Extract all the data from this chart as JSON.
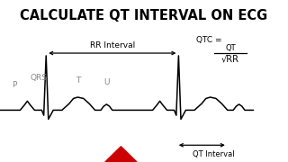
{
  "title": "CALCULATE QT INTERVAL ON ECG",
  "title_bg": "#FFFF00",
  "title_color": "#000000",
  "ecg_color": "#000000",
  "background_color": "#FFFFFF",
  "label_P": "P",
  "label_QRS": "QRS",
  "label_T": "T",
  "label_U": "U",
  "label_RR": "RR Interval",
  "label_QT": "QT Interval",
  "formula_num": "QT",
  "formula_den": "√RR",
  "formula_label": "QTC =",
  "arrow_color": "#000000",
  "red_triangle_color": "#CC0000",
  "figw": 3.2,
  "figh": 1.8,
  "dpi": 100
}
